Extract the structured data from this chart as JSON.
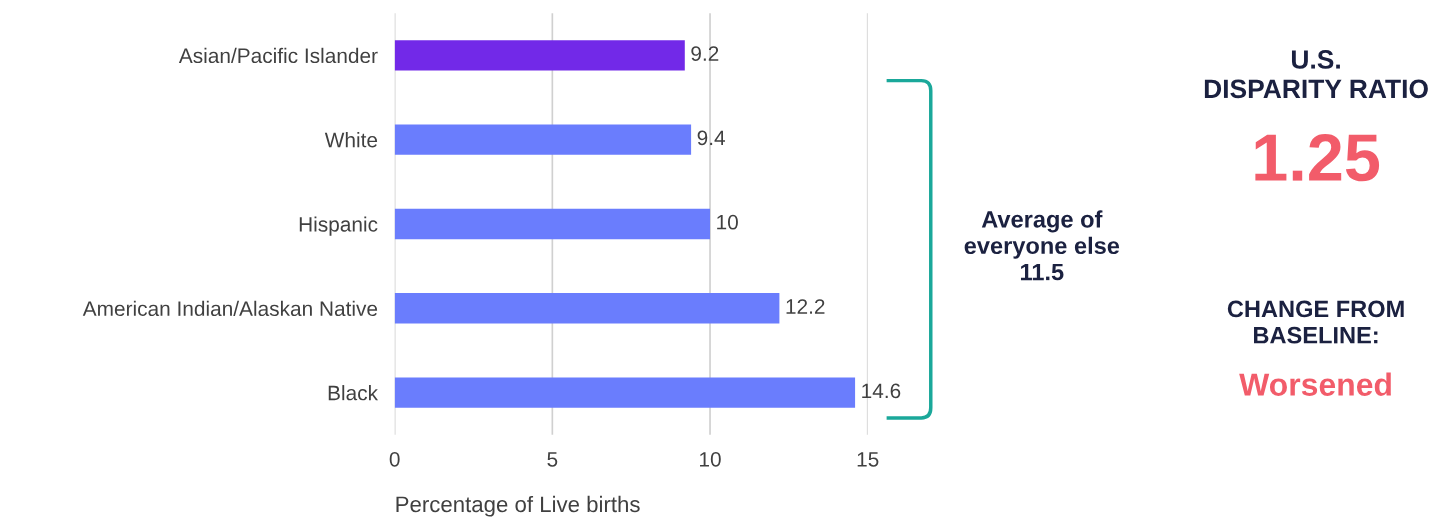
{
  "chart_data": {
    "type": "bar",
    "orientation": "horizontal",
    "categories": [
      "Asian/Pacific Islander",
      "White",
      "Hispanic",
      "American Indian/Alaskan Native",
      "Black"
    ],
    "values": [
      9.2,
      9.4,
      10,
      12.2,
      14.6
    ],
    "colors": [
      "#7229e8",
      "#6a7dfd",
      "#6a7dfd",
      "#6a7dfd",
      "#6a7dfd"
    ],
    "xlabel": "Percentage of Live births",
    "xlim": [
      0,
      15
    ],
    "xticks": [
      0,
      5,
      10,
      15
    ],
    "grid": "x",
    "data_labels": true,
    "annotations": [
      "Average of\neveryone else\n11.5",
      "U.S.\nDISPARITY RATIO",
      "1.25",
      "CHANGE FROM\nBASELINE:",
      "Worsened"
    ]
  }
}
